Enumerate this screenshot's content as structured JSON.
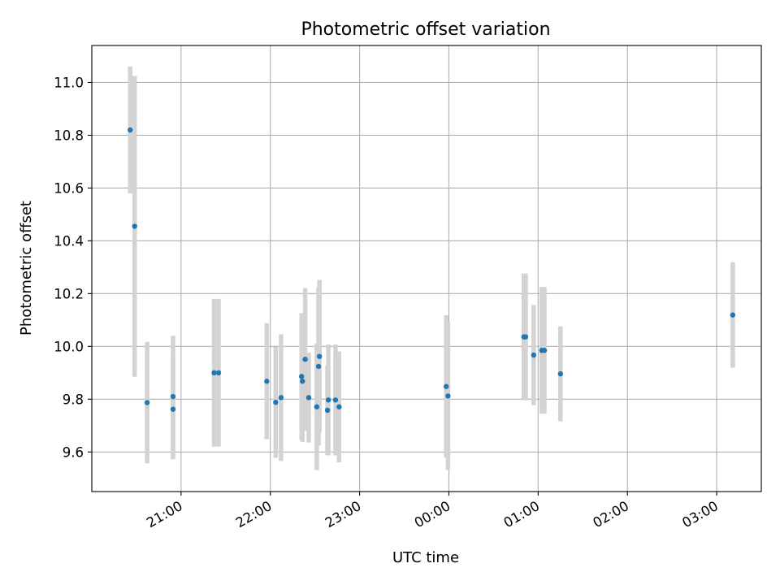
{
  "chart_data": {
    "type": "scatter",
    "title": "Photometric offset variation",
    "xlabel": "UTC time",
    "ylabel": "Photometric offset",
    "x_unit": "hours",
    "x_tick_values": [
      21,
      22,
      23,
      24,
      25,
      26,
      27
    ],
    "x_tick_labels": [
      "21:00",
      "22:00",
      "23:00",
      "00:00",
      "01:00",
      "02:00",
      "03:00"
    ],
    "y_tick_values": [
      9.6,
      9.8,
      10.0,
      10.2,
      10.4,
      10.6,
      10.8,
      11.0
    ],
    "y_tick_labels": [
      "9.6",
      "9.8",
      "10.0",
      "10.2",
      "10.4",
      "10.6",
      "10.8",
      "11.0"
    ],
    "xlim": [
      20.0,
      27.5
    ],
    "ylim": [
      9.45,
      11.14
    ],
    "grid": true,
    "marker_color": "#1f77b4",
    "errorbar_color": "#d3d3d3",
    "points": [
      {
        "x": 20.43,
        "y": 10.82,
        "err": 0.24
      },
      {
        "x": 20.48,
        "y": 10.455,
        "err": 0.57
      },
      {
        "x": 20.62,
        "y": 9.787,
        "err": 0.23
      },
      {
        "x": 20.91,
        "y": 9.81,
        "err": 0.23
      },
      {
        "x": 20.91,
        "y": 9.762,
        "err": 0.19
      },
      {
        "x": 21.37,
        "y": 9.9,
        "err": 0.28
      },
      {
        "x": 21.42,
        "y": 9.9,
        "err": 0.28
      },
      {
        "x": 21.96,
        "y": 9.868,
        "err": 0.22
      },
      {
        "x": 22.06,
        "y": 9.788,
        "err": 0.21
      },
      {
        "x": 22.12,
        "y": 9.806,
        "err": 0.24
      },
      {
        "x": 22.35,
        "y": 9.886,
        "err": 0.24
      },
      {
        "x": 22.36,
        "y": 9.868,
        "err": 0.23
      },
      {
        "x": 22.39,
        "y": 9.951,
        "err": 0.27
      },
      {
        "x": 22.43,
        "y": 9.806,
        "err": 0.17
      },
      {
        "x": 22.52,
        "y": 9.771,
        "err": 0.24
      },
      {
        "x": 22.54,
        "y": 9.924,
        "err": 0.3
      },
      {
        "x": 22.55,
        "y": 9.962,
        "err": 0.29
      },
      {
        "x": 22.64,
        "y": 9.758,
        "err": 0.17
      },
      {
        "x": 22.65,
        "y": 9.797,
        "err": 0.21
      },
      {
        "x": 22.73,
        "y": 9.797,
        "err": 0.21
      },
      {
        "x": 22.77,
        "y": 9.771,
        "err": 0.21
      },
      {
        "x": 23.97,
        "y": 9.848,
        "err": 0.27
      },
      {
        "x": 23.99,
        "y": 9.812,
        "err": 0.28
      },
      {
        "x": 24.84,
        "y": 10.036,
        "err": 0.24
      },
      {
        "x": 24.86,
        "y": 10.036,
        "err": 0.24
      },
      {
        "x": 24.95,
        "y": 9.967,
        "err": 0.19
      },
      {
        "x": 25.04,
        "y": 9.985,
        "err": 0.24
      },
      {
        "x": 25.07,
        "y": 9.985,
        "err": 0.24
      },
      {
        "x": 25.25,
        "y": 9.896,
        "err": 0.18
      },
      {
        "x": 27.18,
        "y": 10.119,
        "err": 0.2
      }
    ]
  }
}
